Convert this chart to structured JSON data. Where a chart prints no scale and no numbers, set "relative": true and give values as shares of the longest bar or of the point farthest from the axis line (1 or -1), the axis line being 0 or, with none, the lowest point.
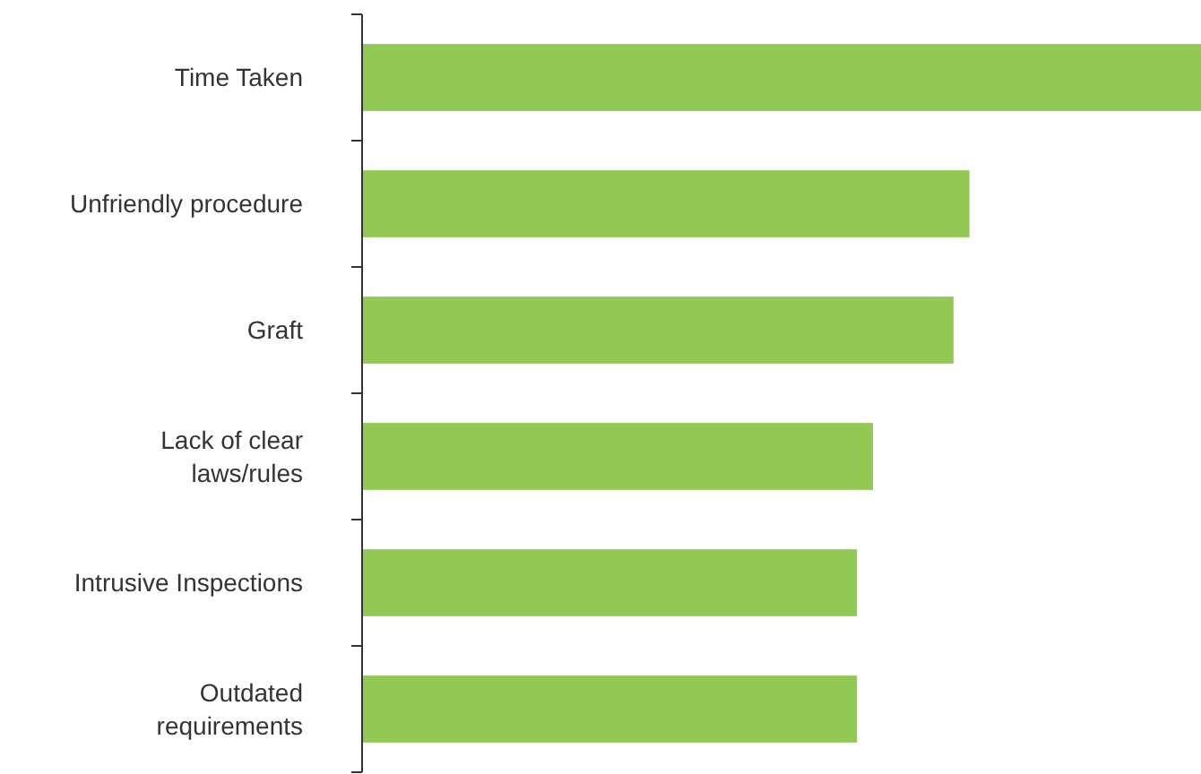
{
  "chart_data": {
    "type": "bar",
    "orientation": "horizontal",
    "relative": true,
    "categories": [
      "Time Taken",
      "Unfriendly procedure",
      "Graft",
      "Lack of clear laws/rules",
      "Intrusive Inspections",
      "Outdated requirements"
    ],
    "values": [
      1,
      0.724,
      0.705,
      0.609,
      0.59,
      0.59
    ],
    "color": "#92c955"
  }
}
